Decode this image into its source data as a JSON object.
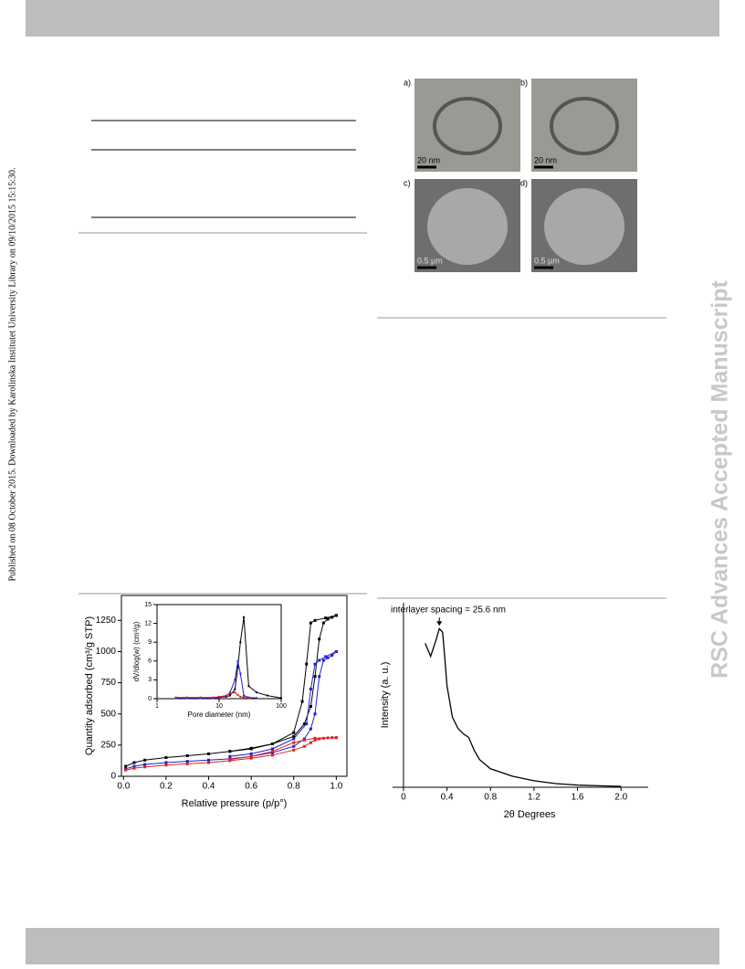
{
  "sidebar": "Published on 08 October 2015. Downloaded by Karolinska Institutet University Library on 09/10/2015 15:15:30.",
  "watermark": "RSC Advances Accepted Manuscript",
  "images": [
    {
      "label": "a)",
      "scale": "20 nm"
    },
    {
      "label": "b)",
      "scale": "20 nm"
    },
    {
      "label": "c)",
      "scale": "0.5 µm"
    },
    {
      "label": "d)",
      "scale": "0.5 µm"
    }
  ],
  "chart_data": [
    {
      "type": "line",
      "xlabel": "Relative pressure (p/p°)",
      "ylabel": "Quantity adsorbed (cm³/g STP)",
      "markers": true,
      "xlim": [
        -0.01,
        1.05
      ],
      "xticks": [
        {
          "value": 0,
          "label": "0.0"
        },
        0.2,
        0.4,
        0.6,
        0.8,
        {
          "value": 1,
          "label": "1.0"
        }
      ],
      "ylim": [
        0,
        1450
      ],
      "yticks": [
        0,
        250,
        500,
        750,
        1000,
        1250
      ],
      "series": [
        {
          "color": "#000000",
          "x": [
            0.01,
            0.05,
            0.1,
            0.2,
            0.3,
            0.4,
            0.5,
            0.6,
            0.7,
            0.8,
            0.85,
            0.88,
            0.9,
            0.92,
            0.94,
            0.96,
            0.98,
            1.0
          ],
          "values": [
            80,
            110,
            130,
            150,
            165,
            180,
            200,
            225,
            260,
            320,
            420,
            560,
            800,
            1100,
            1230,
            1260,
            1275,
            1290
          ]
        },
        {
          "color": "#000000",
          "x": [
            1.0,
            0.95,
            0.9,
            0.88,
            0.86,
            0.84,
            0.8,
            0.7,
            0.6,
            0.5
          ],
          "values": [
            1290,
            1270,
            1250,
            1230,
            900,
            600,
            350,
            260,
            220,
            200
          ]
        },
        {
          "color": "#1f1fd0",
          "x": [
            0.01,
            0.05,
            0.1,
            0.2,
            0.3,
            0.4,
            0.5,
            0.6,
            0.7,
            0.8,
            0.85,
            0.88,
            0.9,
            0.92,
            0.94,
            0.96,
            0.98,
            1.0
          ],
          "values": [
            60,
            80,
            95,
            110,
            120,
            130,
            140,
            160,
            190,
            240,
            300,
            380,
            500,
            800,
            930,
            950,
            970,
            1000
          ]
        },
        {
          "color": "#1f1fd0",
          "x": [
            1.0,
            0.95,
            0.92,
            0.9,
            0.88,
            0.86,
            0.8,
            0.7,
            0.6,
            0.5
          ],
          "values": [
            1000,
            960,
            930,
            900,
            700,
            420,
            300,
            220,
            180,
            160
          ]
        },
        {
          "color": "#e02020",
          "x": [
            0.01,
            0.05,
            0.1,
            0.2,
            0.3,
            0.4,
            0.5,
            0.6,
            0.7,
            0.8,
            0.85,
            0.88,
            0.9,
            0.92,
            0.94,
            0.96,
            0.98,
            1.0
          ],
          "values": [
            50,
            65,
            75,
            90,
            100,
            110,
            125,
            145,
            170,
            210,
            240,
            270,
            290,
            300,
            305,
            308,
            310,
            310
          ]
        },
        {
          "color": "#e02020",
          "x": [
            1.0,
            0.9,
            0.85,
            0.8,
            0.7,
            0.6,
            0.5
          ],
          "values": [
            310,
            305,
            290,
            270,
            200,
            160,
            135
          ]
        }
      ]
    },
    {
      "type": "line",
      "xlabel": "Pore diameter (nm)",
      "ylabel": "dV/dlog(w)  (cm³/g)",
      "markers": true,
      "xlog": true,
      "xlim": [
        1,
        100
      ],
      "xticks": [
        1,
        10,
        100
      ],
      "ylim": [
        0,
        15
      ],
      "yticks": [
        0,
        3,
        6,
        9,
        12,
        15
      ],
      "series": [
        {
          "color": "#000000",
          "x": [
            2,
            3,
            5,
            8,
            10,
            13,
            15,
            18,
            20,
            22,
            25,
            30,
            40,
            60,
            100
          ],
          "values": [
            0.1,
            0.1,
            0.1,
            0.1,
            0.2,
            0.3,
            0.5,
            1.5,
            5,
            9,
            13,
            2,
            1,
            0.5,
            0.1
          ]
        },
        {
          "color": "#1f1fd0",
          "x": [
            2,
            3,
            5,
            8,
            10,
            13,
            15,
            18,
            20,
            22,
            25,
            30,
            40
          ],
          "values": [
            0.1,
            0.1,
            0.1,
            0.1,
            0.2,
            0.4,
            1,
            3,
            6,
            4,
            0.5,
            0.2,
            0.1
          ]
        },
        {
          "color": "#e02020",
          "x": [
            2,
            3,
            5,
            8,
            10,
            13,
            15,
            18,
            20,
            22,
            25,
            30
          ],
          "values": [
            0.2,
            0.2,
            0.2,
            0.2,
            0.3,
            0.5,
            0.8,
            1,
            0.6,
            0.3,
            0.2,
            0.1
          ]
        }
      ]
    },
    {
      "type": "line",
      "xlabel": "2θ Degrees",
      "ylabel": "Intensity (a. u.)",
      "annotation": "interlayer spacing = 25.6 nm",
      "xlim": [
        -0.1,
        2.25
      ],
      "xticks": [
        0,
        0.4,
        0.8,
        1.2,
        1.6,
        {
          "value": 2,
          "label": "2.0"
        }
      ],
      "ylim": [
        0,
        100
      ],
      "series": [
        {
          "color": "#000000",
          "x": [
            0.2,
            0.25,
            0.3,
            0.33,
            0.36,
            0.38,
            0.4,
            0.45,
            0.5,
            0.55,
            0.6,
            0.65,
            0.7,
            0.8,
            0.9,
            1.0,
            1.2,
            1.4,
            1.6,
            1.8,
            2.0
          ],
          "values": [
            78,
            71,
            80,
            86,
            84,
            70,
            55,
            38,
            32,
            29,
            27,
            20,
            15,
            10,
            8,
            6,
            3.5,
            2,
            1.2,
            0.8,
            0.5
          ]
        }
      ]
    }
  ]
}
